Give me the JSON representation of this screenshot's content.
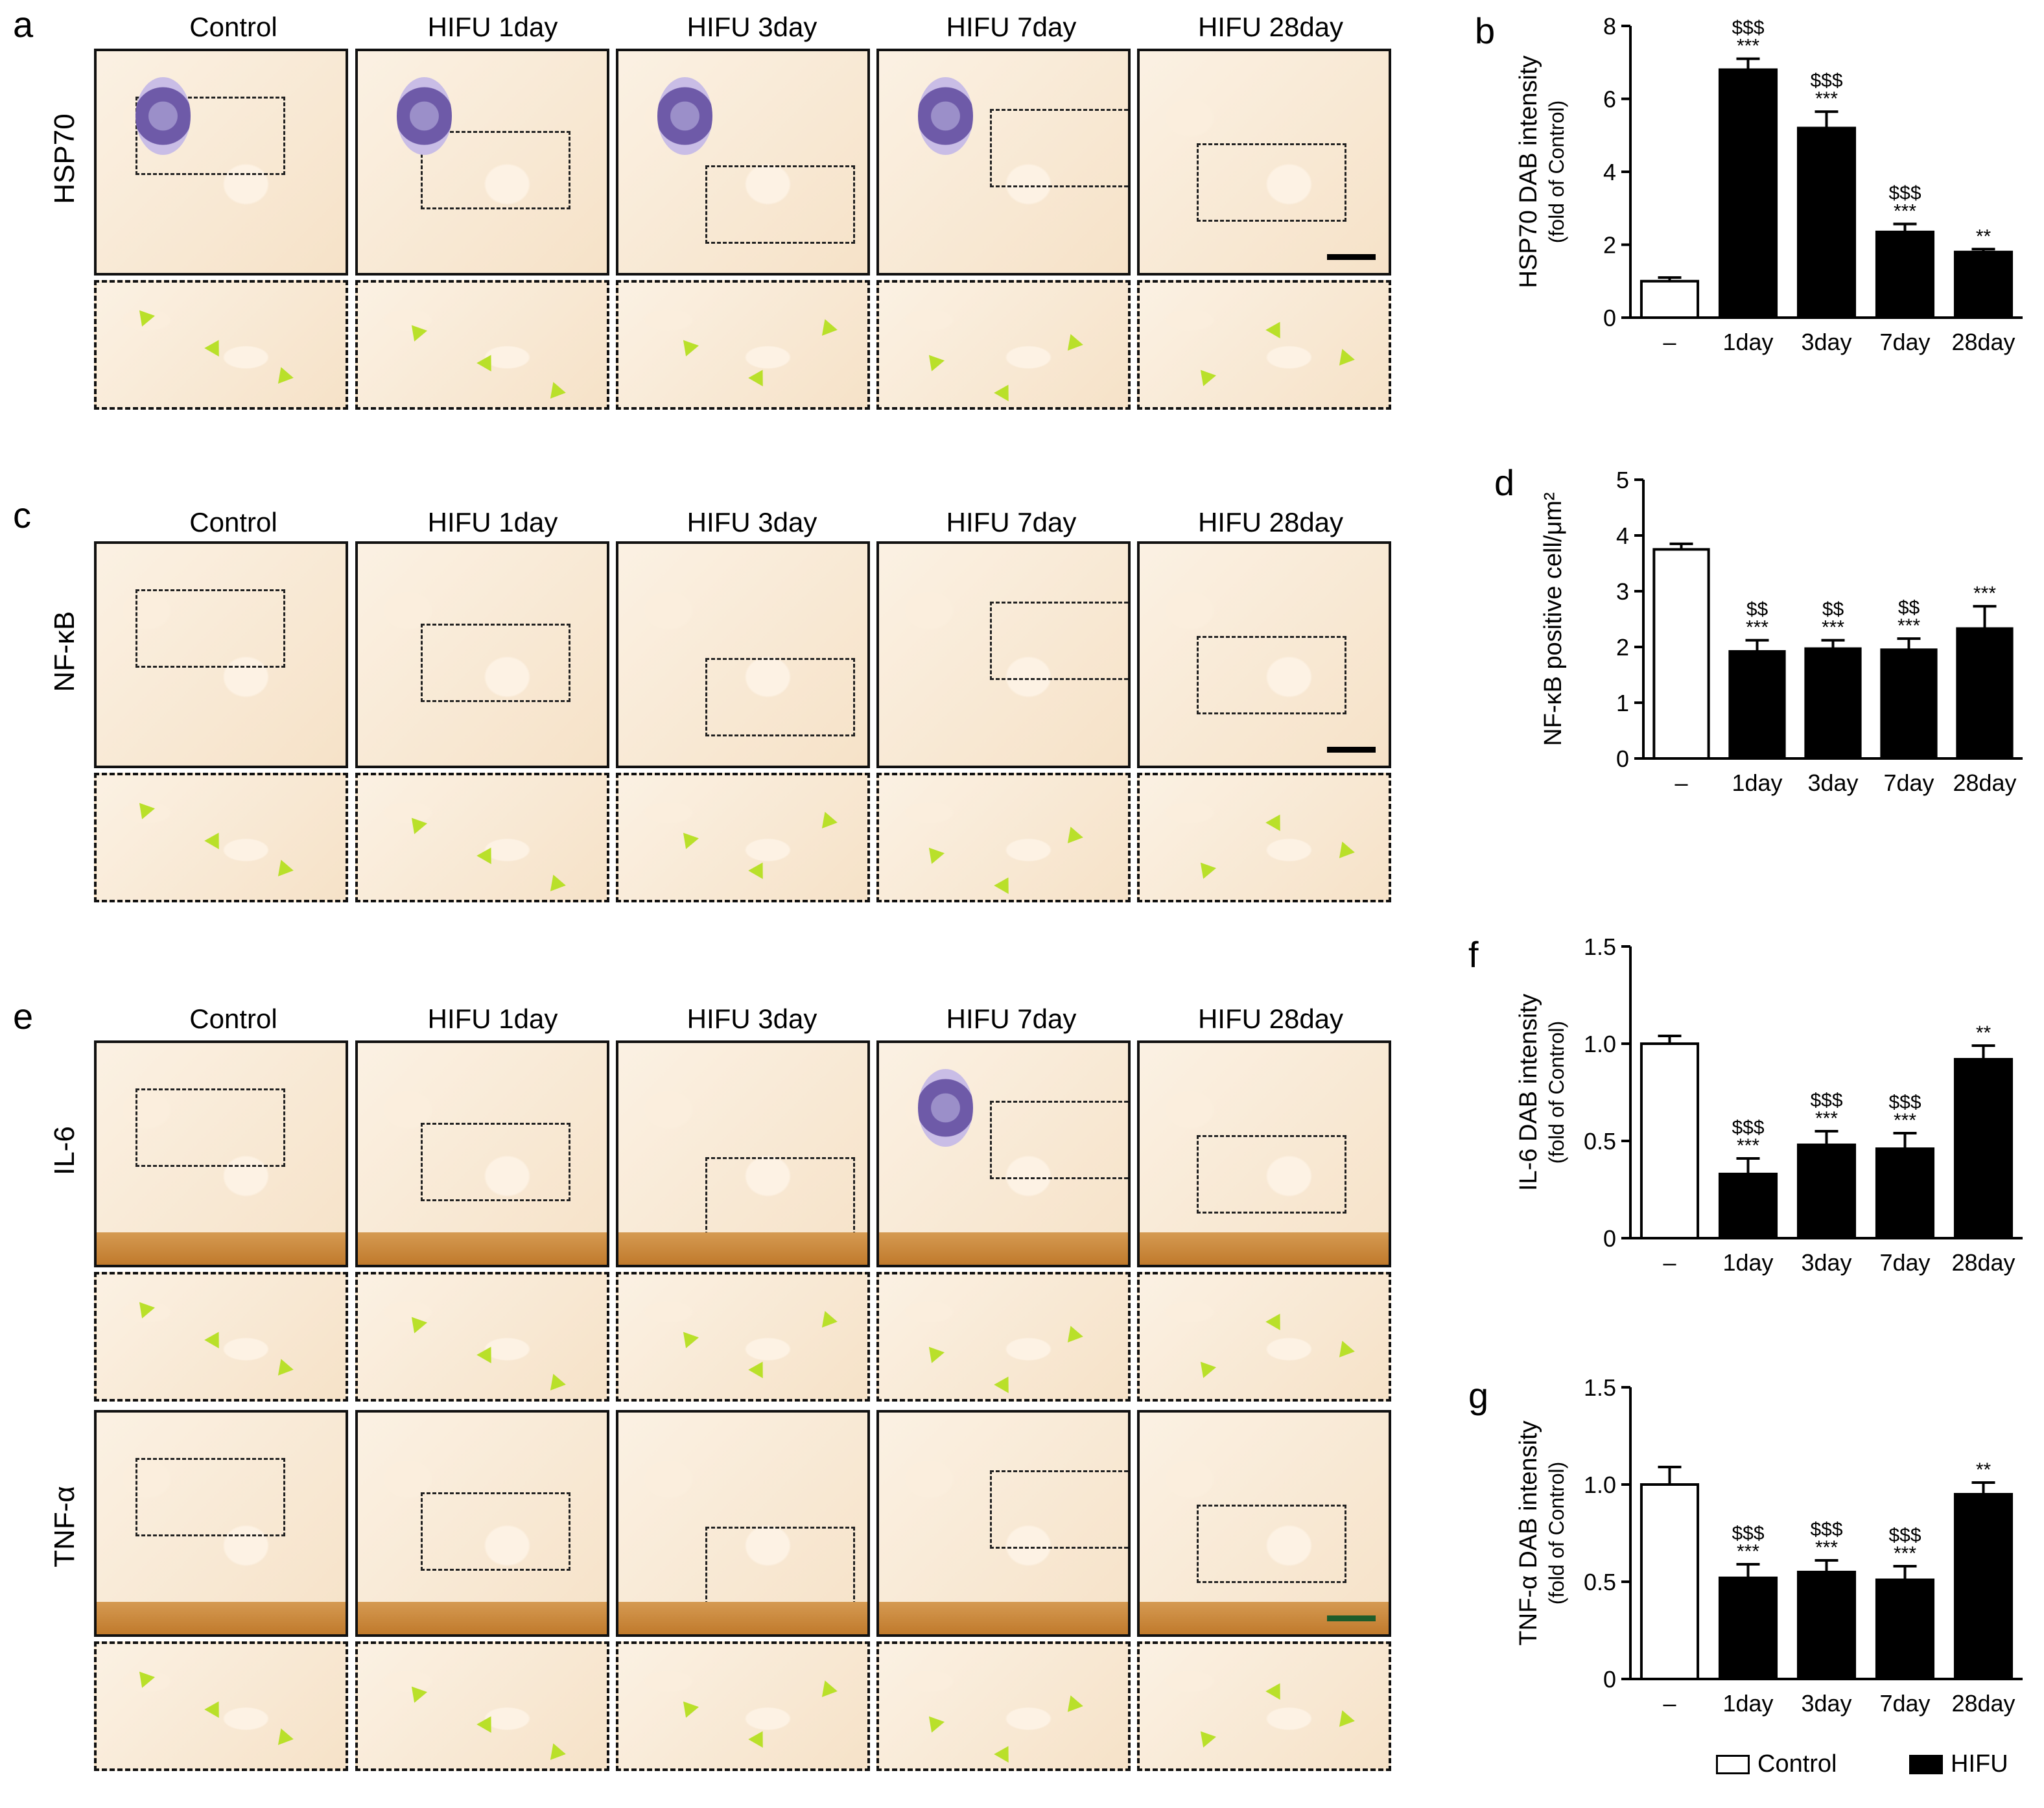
{
  "panel_letters": {
    "a": "a",
    "b": "b",
    "c": "c",
    "d": "d",
    "e": "e",
    "f": "f",
    "g": "g"
  },
  "column_headers": [
    "Control",
    "HIFU 1day",
    "HIFU 3day",
    "HIFU 7day",
    "HIFU 28day"
  ],
  "row_labels": {
    "hsp70": "HSP70",
    "nfkb": "NF-κB",
    "il6": "IL-6",
    "tnfa": "TNF-α"
  },
  "legend": {
    "control": "Control",
    "hifu": "HIFU"
  },
  "colors": {
    "bar_fill": "#000000",
    "control_fill": "#ffffff",
    "arrow": "#b9e02a",
    "stain": "#d8a465",
    "hematoxylin": "#6e5aa8"
  },
  "chart_data": [
    {
      "id": "b",
      "type": "bar",
      "ylabel": "HSP70 DAB intensity",
      "ylabel2": "(fold of Control)",
      "categories": [
        "–",
        "1day",
        "3day",
        "7day",
        "28day"
      ],
      "values": [
        1.0,
        6.8,
        5.2,
        2.35,
        1.8
      ],
      "errors": [
        0.1,
        0.3,
        0.45,
        0.22,
        0.08
      ],
      "fills": [
        "white",
        "black",
        "black",
        "black",
        "black"
      ],
      "annotations_top": [
        "",
        "$$$",
        "$$$",
        "$$$",
        ""
      ],
      "annotations_bottom": [
        "",
        "***",
        "***",
        "***",
        "**"
      ],
      "ylim": [
        0,
        8
      ],
      "yticks": [
        0,
        2,
        4,
        6,
        8
      ],
      "ytick_labels": [
        "0",
        "2",
        "4",
        "6",
        "8"
      ]
    },
    {
      "id": "d",
      "type": "bar",
      "ylabel": "NF-κB positive cell/μm²",
      "ylabel2": "",
      "categories": [
        "–",
        "1day",
        "3day",
        "7day",
        "28day"
      ],
      "values": [
        3.75,
        1.92,
        1.97,
        1.95,
        2.33
      ],
      "errors": [
        0.1,
        0.2,
        0.15,
        0.2,
        0.4
      ],
      "fills": [
        "white",
        "black",
        "black",
        "black",
        "black"
      ],
      "annotations_top": [
        "",
        "$$",
        "$$",
        "$$",
        ""
      ],
      "annotations_bottom": [
        "",
        "***",
        "***",
        "***",
        "***"
      ],
      "ylim": [
        0,
        5
      ],
      "yticks": [
        0,
        1,
        2,
        3,
        4,
        5
      ],
      "ytick_labels": [
        "0",
        "1",
        "2",
        "3",
        "4",
        "5"
      ]
    },
    {
      "id": "f",
      "type": "bar",
      "ylabel": "IL-6 DAB intensity",
      "ylabel2": "(fold of Control)",
      "categories": [
        "–",
        "1day",
        "3day",
        "7day",
        "28day"
      ],
      "values": [
        1.0,
        0.33,
        0.48,
        0.46,
        0.92
      ],
      "errors": [
        0.04,
        0.08,
        0.07,
        0.08,
        0.07
      ],
      "fills": [
        "white",
        "black",
        "black",
        "black",
        "black"
      ],
      "annotations_top": [
        "",
        "$$$",
        "$$$",
        "$$$",
        ""
      ],
      "annotations_bottom": [
        "",
        "***",
        "***",
        "***",
        "**"
      ],
      "ylim": [
        0,
        1.5
      ],
      "yticks": [
        0,
        0.5,
        1.0,
        1.5
      ],
      "ytick_labels": [
        "0",
        "0.5",
        "1.0",
        "1.5"
      ]
    },
    {
      "id": "g",
      "type": "bar",
      "ylabel": "TNF-α DAB intensity",
      "ylabel2": "(fold of Control)",
      "categories": [
        "–",
        "1day",
        "3day",
        "7day",
        "28day"
      ],
      "values": [
        1.0,
        0.52,
        0.55,
        0.51,
        0.95
      ],
      "errors": [
        0.09,
        0.07,
        0.06,
        0.07,
        0.06
      ],
      "fills": [
        "white",
        "black",
        "black",
        "black",
        "black"
      ],
      "annotations_top": [
        "",
        "$$$",
        "$$$",
        "$$$",
        ""
      ],
      "annotations_bottom": [
        "",
        "***",
        "***",
        "***",
        "**"
      ],
      "ylim": [
        0,
        1.5
      ],
      "yticks": [
        0,
        0.5,
        1.0,
        1.5
      ],
      "ytick_labels": [
        "0",
        "0.5",
        "1.0",
        "1.5"
      ]
    }
  ]
}
